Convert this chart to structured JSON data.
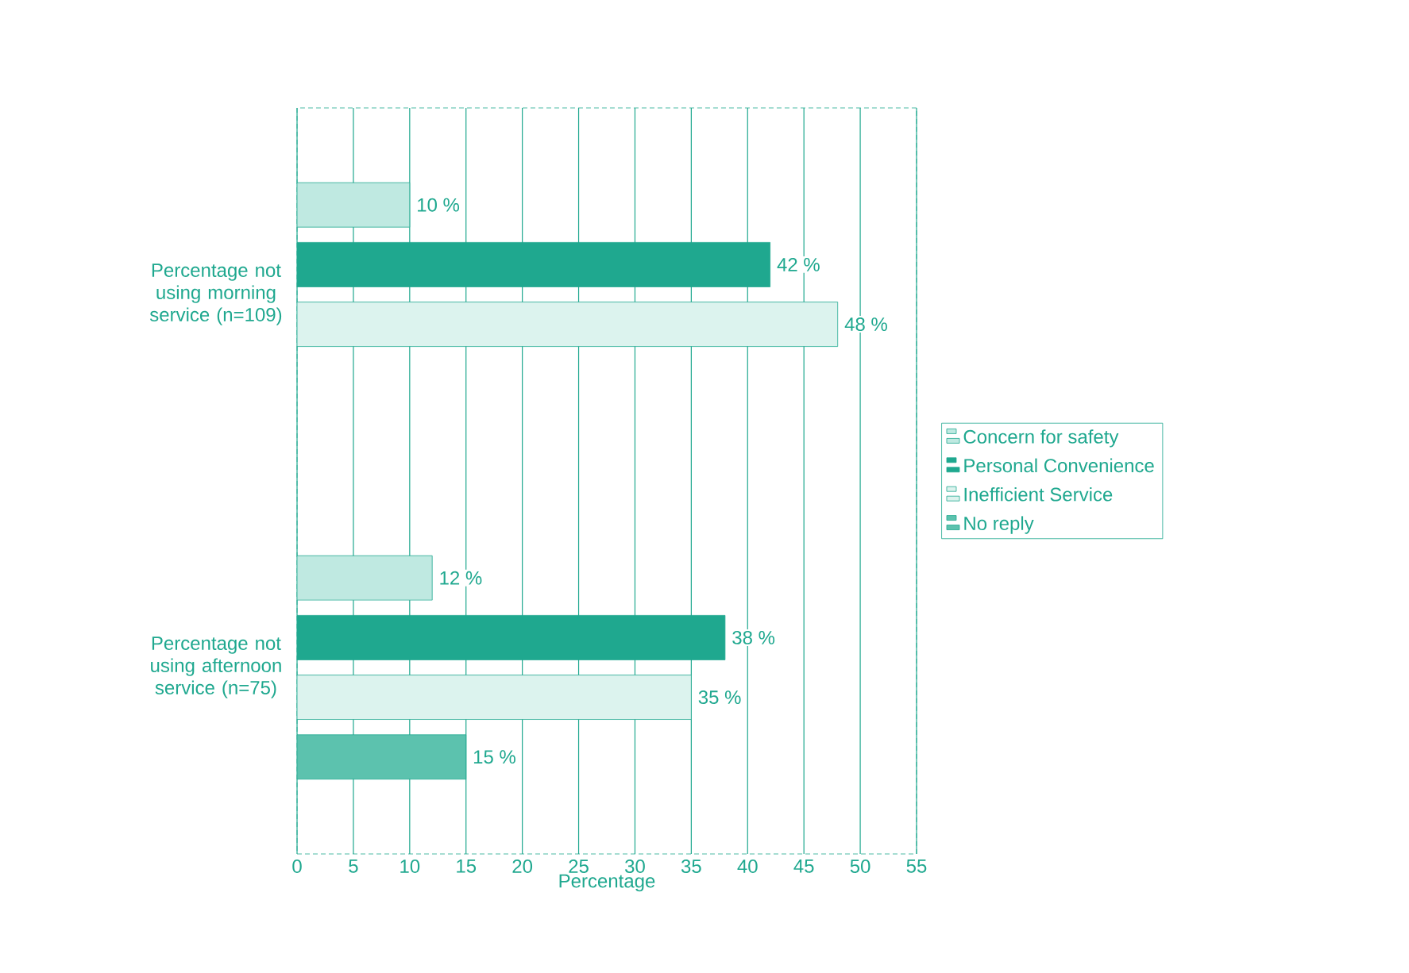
{
  "chart_data": {
    "type": "bar",
    "orientation": "horizontal",
    "xlabel": "Percentage",
    "categories": [
      "Percentage not using morning service (n=109)",
      "Percentage not using afternoon service (n=75)"
    ],
    "series": [
      {
        "name": "Concern for safety",
        "color": "#bfe9e1",
        "values": [
          10,
          12
        ],
        "value_labels": [
          "10 %",
          "12 %"
        ]
      },
      {
        "name": "Personal Convenience",
        "color": "#1fa88f",
        "values": [
          42,
          38
        ],
        "value_labels": [
          "42 %",
          "38 %"
        ]
      },
      {
        "name": "Inefficient Service",
        "color": "#dcf3ee",
        "values": [
          48,
          35
        ],
        "value_labels": [
          "48 %",
          "35 %"
        ]
      },
      {
        "name": "No reply",
        "color": "#5cc2ae",
        "values": [
          null,
          15
        ],
        "value_labels": [
          null,
          "15 %"
        ]
      }
    ],
    "xlim": [
      0,
      55
    ],
    "xticks": [
      0,
      5,
      10,
      15,
      20,
      25,
      30,
      35,
      40,
      45,
      50,
      55
    ],
    "grid": "x",
    "legend": "right"
  }
}
